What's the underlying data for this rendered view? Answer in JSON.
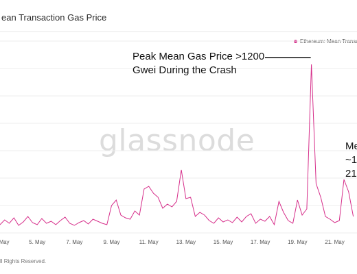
{
  "title": "ean Transaction Gas Price",
  "legend": "Ethereum: Mean Transaction",
  "watermark": "glassnode",
  "footer": "ll Rights Reserved.",
  "annotations": {
    "peak_line1": "Peak Mean Gas Price >1200",
    "peak_line2": "Gwei During the Crash",
    "right_line1": "Me",
    "right_line2": "~1",
    "right_line3": "21"
  },
  "colors": {
    "series": "#d62e8a",
    "grid": "#ededed",
    "axis_text": "#555555"
  },
  "chart_data": {
    "type": "line",
    "title": "ean Transaction Gas Price",
    "series": [
      {
        "name": "Ethereum: Mean Transaction",
        "x": [
          3.0,
          3.25,
          3.5,
          3.75,
          4.0,
          4.25,
          4.5,
          4.75,
          5.0,
          5.25,
          5.5,
          5.75,
          6.0,
          6.25,
          6.5,
          6.75,
          7.0,
          7.25,
          7.5,
          7.75,
          8.0,
          8.25,
          8.5,
          8.75,
          9.0,
          9.25,
          9.5,
          9.75,
          10.0,
          10.25,
          10.5,
          10.75,
          11.0,
          11.25,
          11.5,
          11.75,
          12.0,
          12.25,
          12.5,
          12.75,
          13.0,
          13.25,
          13.5,
          13.75,
          14.0,
          14.25,
          14.5,
          14.75,
          15.0,
          15.25,
          15.5,
          15.75,
          16.0,
          16.25,
          16.5,
          16.75,
          17.0,
          17.25,
          17.5,
          17.75,
          18.0,
          18.25,
          18.5,
          18.75,
          19.0,
          19.25,
          19.5,
          19.75,
          20.0,
          20.25,
          20.5,
          20.75,
          21.0,
          21.25,
          21.5,
          21.75,
          22.0
        ],
        "values": [
          60,
          95,
          70,
          110,
          55,
          80,
          120,
          75,
          60,
          105,
          70,
          85,
          60,
          90,
          115,
          70,
          55,
          75,
          90,
          65,
          100,
          85,
          70,
          60,
          200,
          240,
          130,
          110,
          100,
          160,
          130,
          320,
          340,
          290,
          260,
          180,
          210,
          190,
          230,
          460,
          250,
          260,
          120,
          150,
          130,
          90,
          70,
          110,
          80,
          95,
          75,
          115,
          80,
          120,
          140,
          70,
          100,
          85,
          120,
          60,
          230,
          150,
          90,
          70,
          240,
          130,
          175,
          1230,
          360,
          260,
          120,
          100,
          75,
          90,
          390,
          300,
          120
        ]
      }
    ],
    "x_ticks": [
      "5. May",
      "7. May",
      "9. May",
      "11. May",
      "13. May",
      "15. May",
      "17. May",
      "19. May",
      "21. May"
    ],
    "x_tick_positions": [
      5,
      7,
      9,
      11,
      13,
      15,
      17,
      19,
      21
    ],
    "first_tick_partial": "May",
    "xlim": [
      3.0,
      22.2
    ],
    "ylim": [
      0,
      1400
    ],
    "grid": true,
    "legend_position": "top-right"
  }
}
